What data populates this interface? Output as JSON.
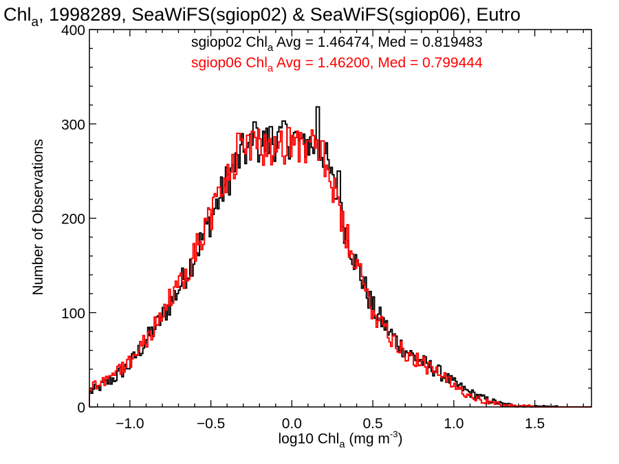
{
  "chart_data": {
    "type": "histogram",
    "title": {
      "prefix": "Chl",
      "subscript": "a",
      "suffix": ", 1998289, SeaWiFS(sgiop02) & SeaWiFS(sgiop06), Eutro"
    },
    "xlabel": {
      "prefix": "log10 Chl",
      "subscript": "a",
      "units_open": " (mg m",
      "superscript": "-3",
      "units_close": ")"
    },
    "ylabel": "Number of Observations",
    "xlim": [
      -1.25,
      1.85
    ],
    "ylim": [
      0,
      400
    ],
    "xticks": [
      -1.0,
      -0.5,
      0.0,
      0.5,
      1.0,
      1.5
    ],
    "xtick_labels": [
      "−1.0",
      "−0.5",
      "0.0",
      "0.5",
      "1.0",
      "1.5"
    ],
    "yticks": [
      0,
      100,
      200,
      300,
      400
    ],
    "ytick_labels": [
      "0",
      "100",
      "200",
      "300",
      "400"
    ],
    "x_minor_step": 0.1,
    "y_minor_step": 20,
    "grid": false,
    "legend_position": "top",
    "series": [
      {
        "name_prefix": "sgiop02 Chl",
        "name_subscript": "a",
        "stats_text": " Avg = 1.46474, Med = 0.819483",
        "color": "#000000",
        "keypoints": [
          [
            -1.25,
            15
          ],
          [
            -1.2,
            20
          ],
          [
            -1.1,
            30
          ],
          [
            -1.0,
            45
          ],
          [
            -0.9,
            70
          ],
          [
            -0.8,
            95
          ],
          [
            -0.7,
            125
          ],
          [
            -0.6,
            160
          ],
          [
            -0.5,
            200
          ],
          [
            -0.4,
            240
          ],
          [
            -0.3,
            270
          ],
          [
            -0.2,
            278
          ],
          [
            -0.1,
            282
          ],
          [
            0.0,
            285
          ],
          [
            0.1,
            280
          ],
          [
            0.2,
            270
          ],
          [
            0.3,
            205
          ],
          [
            0.4,
            150
          ],
          [
            0.5,
            105
          ],
          [
            0.6,
            80
          ],
          [
            0.7,
            60
          ],
          [
            0.8,
            48
          ],
          [
            0.9,
            38
          ],
          [
            1.0,
            25
          ],
          [
            1.1,
            15
          ],
          [
            1.2,
            8
          ],
          [
            1.3,
            3
          ],
          [
            1.4,
            1
          ],
          [
            1.5,
            0.5
          ],
          [
            1.85,
            0
          ]
        ],
        "spikes": [
          [
            0.16,
            318
          ],
          [
            0.06,
            285
          ],
          [
            -0.23,
            302
          ],
          [
            -0.05,
            303
          ],
          [
            -0.13,
            297
          ],
          [
            0.29,
            250
          ]
        ]
      },
      {
        "name_prefix": "sgiop06 Chl",
        "name_subscript": "a",
        "stats_text": " Avg = 1.46200, Med = 0.799444",
        "color": "#ff0000",
        "keypoints": [
          [
            -1.25,
            20
          ],
          [
            -1.2,
            25
          ],
          [
            -1.1,
            35
          ],
          [
            -1.0,
            48
          ],
          [
            -0.9,
            72
          ],
          [
            -0.8,
            98
          ],
          [
            -0.7,
            128
          ],
          [
            -0.6,
            163
          ],
          [
            -0.5,
            203
          ],
          [
            -0.4,
            243
          ],
          [
            -0.3,
            268
          ],
          [
            -0.2,
            275
          ],
          [
            -0.1,
            278
          ],
          [
            0.0,
            280
          ],
          [
            0.1,
            276
          ],
          [
            0.2,
            266
          ],
          [
            0.3,
            200
          ],
          [
            0.4,
            148
          ],
          [
            0.5,
            103
          ],
          [
            0.6,
            78
          ],
          [
            0.7,
            58
          ],
          [
            0.8,
            46
          ],
          [
            0.9,
            36
          ],
          [
            1.0,
            22
          ],
          [
            1.1,
            13
          ],
          [
            1.2,
            6
          ],
          [
            1.3,
            2
          ],
          [
            1.4,
            0.8
          ],
          [
            1.5,
            0.3
          ],
          [
            1.85,
            0
          ]
        ],
        "spikes": [
          [
            -0.33,
            290
          ],
          [
            -0.02,
            296
          ],
          [
            0.19,
            282
          ],
          [
            -0.27,
            288
          ],
          [
            0.1,
            282
          ]
        ]
      }
    ]
  }
}
